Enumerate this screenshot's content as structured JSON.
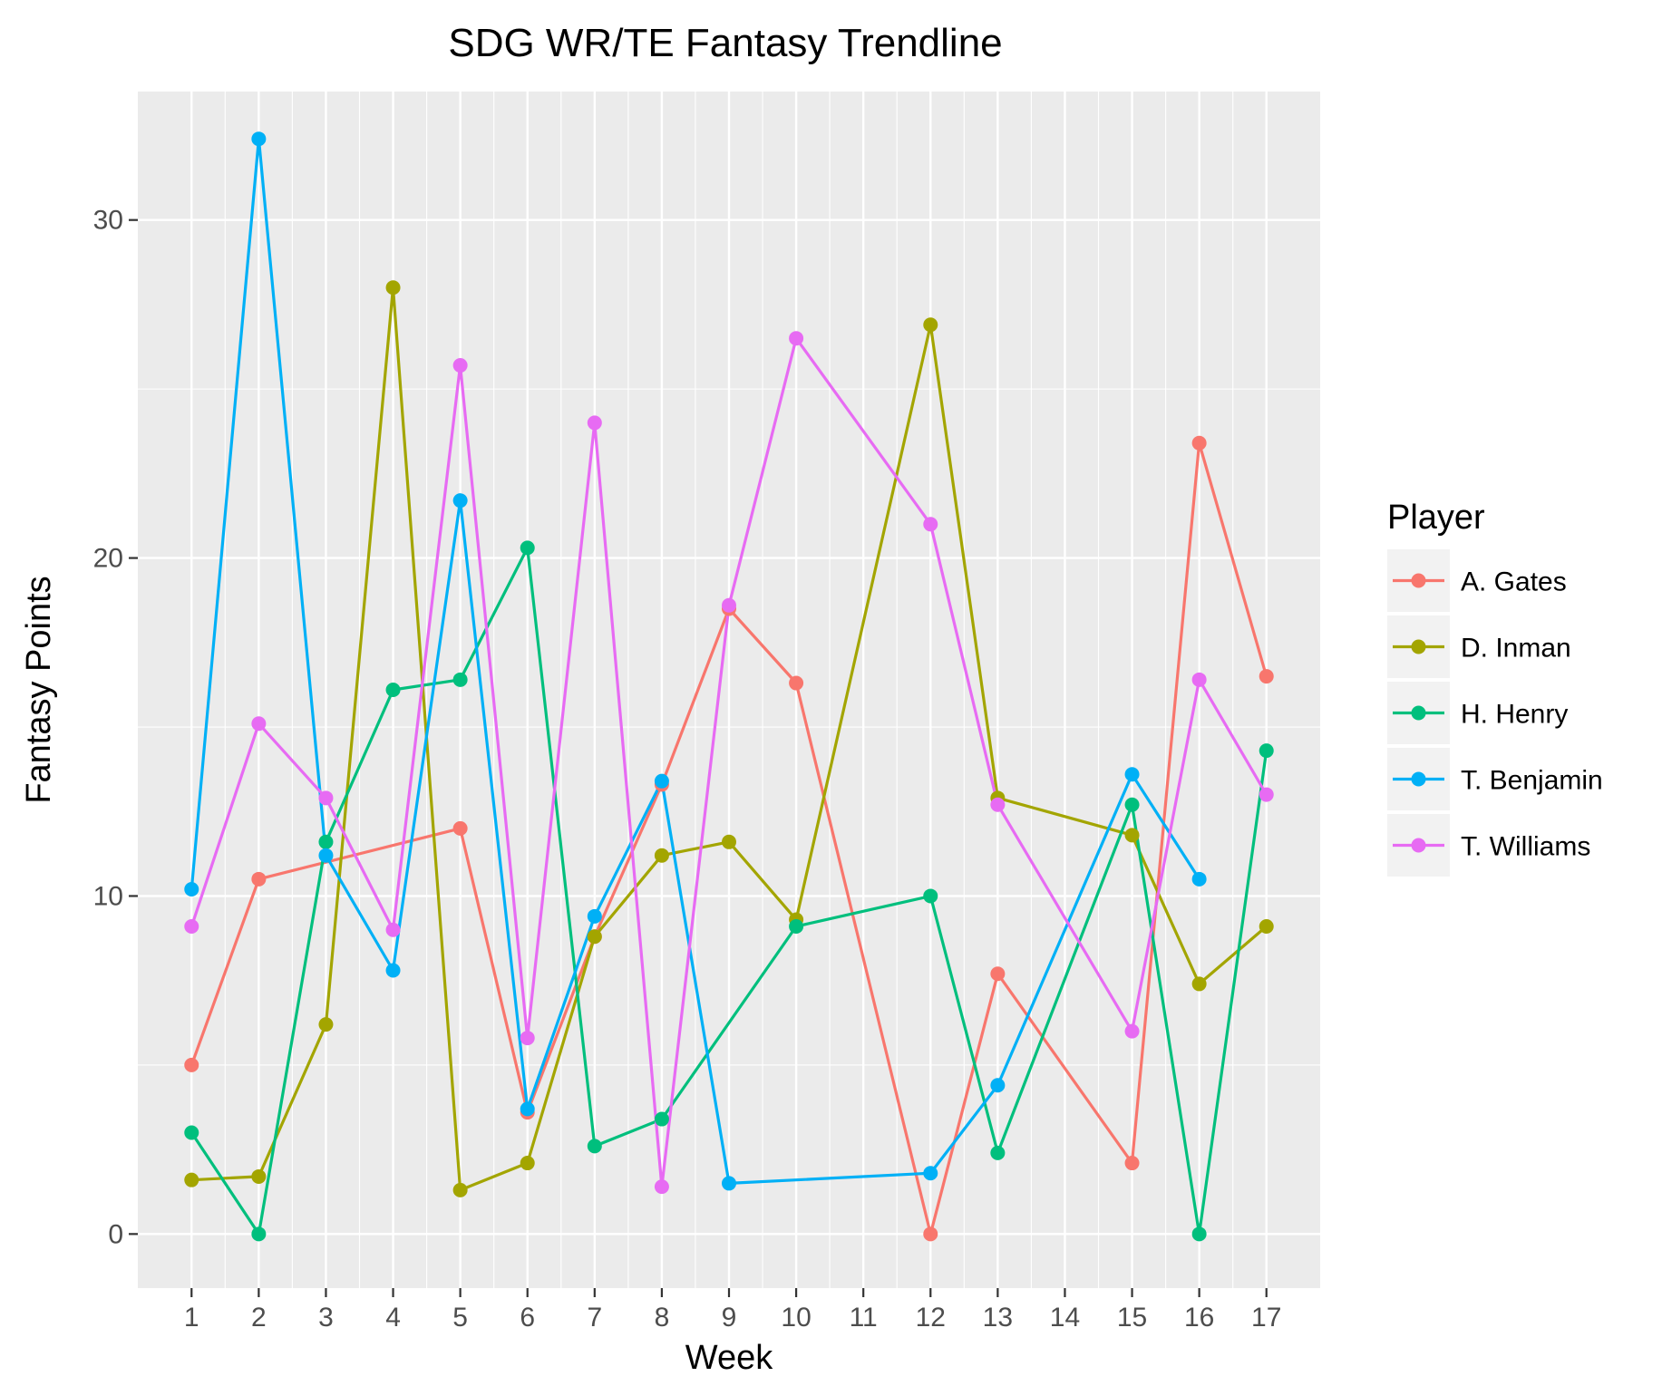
{
  "chart_data": {
    "type": "line",
    "title": "SDG WR/TE Fantasy Trendline",
    "xlabel": "Week",
    "ylabel": "Fantasy Points",
    "x": [
      1,
      2,
      3,
      4,
      5,
      6,
      7,
      8,
      9,
      10,
      11,
      12,
      13,
      14,
      15,
      16,
      17
    ],
    "x_tick_labels": [
      "1",
      "2",
      "3",
      "4",
      "5",
      "6",
      "7",
      "8",
      "9",
      "10",
      "11",
      "12",
      "13",
      "14",
      "15",
      "16",
      "17"
    ],
    "y_ticks": [
      0,
      10,
      20,
      30
    ],
    "ylim": [
      -1.6,
      33.8
    ],
    "xlim": [
      0.2,
      17.8
    ],
    "grid": true,
    "legend": {
      "title": "Player",
      "placement": "right"
    },
    "series": [
      {
        "name": "A. Gates",
        "color": "#F8766D",
        "points": [
          [
            1,
            5.0
          ],
          [
            2,
            10.5
          ],
          [
            5,
            12.0
          ],
          [
            6,
            3.6
          ],
          [
            7,
            8.8
          ],
          [
            8,
            13.3
          ],
          [
            9,
            18.5
          ],
          [
            10,
            16.3
          ],
          [
            12,
            0.0
          ],
          [
            13,
            7.7
          ],
          [
            15,
            2.1
          ],
          [
            16,
            23.4
          ],
          [
            17,
            16.5
          ]
        ]
      },
      {
        "name": "D. Inman",
        "color": "#A3A500",
        "points": [
          [
            1,
            1.6
          ],
          [
            2,
            1.7
          ],
          [
            3,
            6.2
          ],
          [
            4,
            28.0
          ],
          [
            5,
            1.3
          ],
          [
            6,
            2.1
          ],
          [
            7,
            8.8
          ],
          [
            8,
            11.2
          ],
          [
            9,
            11.6
          ],
          [
            10,
            9.3
          ],
          [
            12,
            26.9
          ],
          [
            13,
            12.9
          ],
          [
            15,
            11.8
          ],
          [
            16,
            7.4
          ],
          [
            17,
            9.1
          ]
        ]
      },
      {
        "name": "H. Henry",
        "color": "#00BF7D",
        "points": [
          [
            1,
            3.0
          ],
          [
            2,
            0.0
          ],
          [
            3,
            11.6
          ],
          [
            4,
            16.1
          ],
          [
            5,
            16.4
          ],
          [
            6,
            20.3
          ],
          [
            7,
            2.6
          ],
          [
            8,
            3.4
          ],
          [
            10,
            9.1
          ],
          [
            12,
            10.0
          ],
          [
            13,
            2.4
          ],
          [
            15,
            12.7
          ],
          [
            16,
            0.0
          ],
          [
            17,
            14.3
          ]
        ]
      },
      {
        "name": "T. Benjamin",
        "color": "#00B0F6",
        "points": [
          [
            1,
            10.2
          ],
          [
            2,
            32.4
          ],
          [
            3,
            11.2
          ],
          [
            4,
            7.8
          ],
          [
            5,
            21.7
          ],
          [
            6,
            3.7
          ],
          [
            7,
            9.4
          ],
          [
            8,
            13.4
          ],
          [
            9,
            1.5
          ],
          [
            12,
            1.8
          ],
          [
            13,
            4.4
          ],
          [
            15,
            13.6
          ],
          [
            16,
            10.5
          ]
        ]
      },
      {
        "name": "T. Williams",
        "color": "#E76BF3",
        "points": [
          [
            1,
            9.1
          ],
          [
            2,
            15.1
          ],
          [
            3,
            12.9
          ],
          [
            4,
            9.0
          ],
          [
            5,
            25.7
          ],
          [
            6,
            5.8
          ],
          [
            7,
            24.0
          ],
          [
            8,
            1.4
          ],
          [
            9,
            18.6
          ],
          [
            10,
            26.5
          ],
          [
            12,
            21.0
          ],
          [
            13,
            12.7
          ],
          [
            15,
            6.0
          ],
          [
            16,
            16.4
          ],
          [
            17,
            13.0
          ]
        ]
      }
    ]
  }
}
